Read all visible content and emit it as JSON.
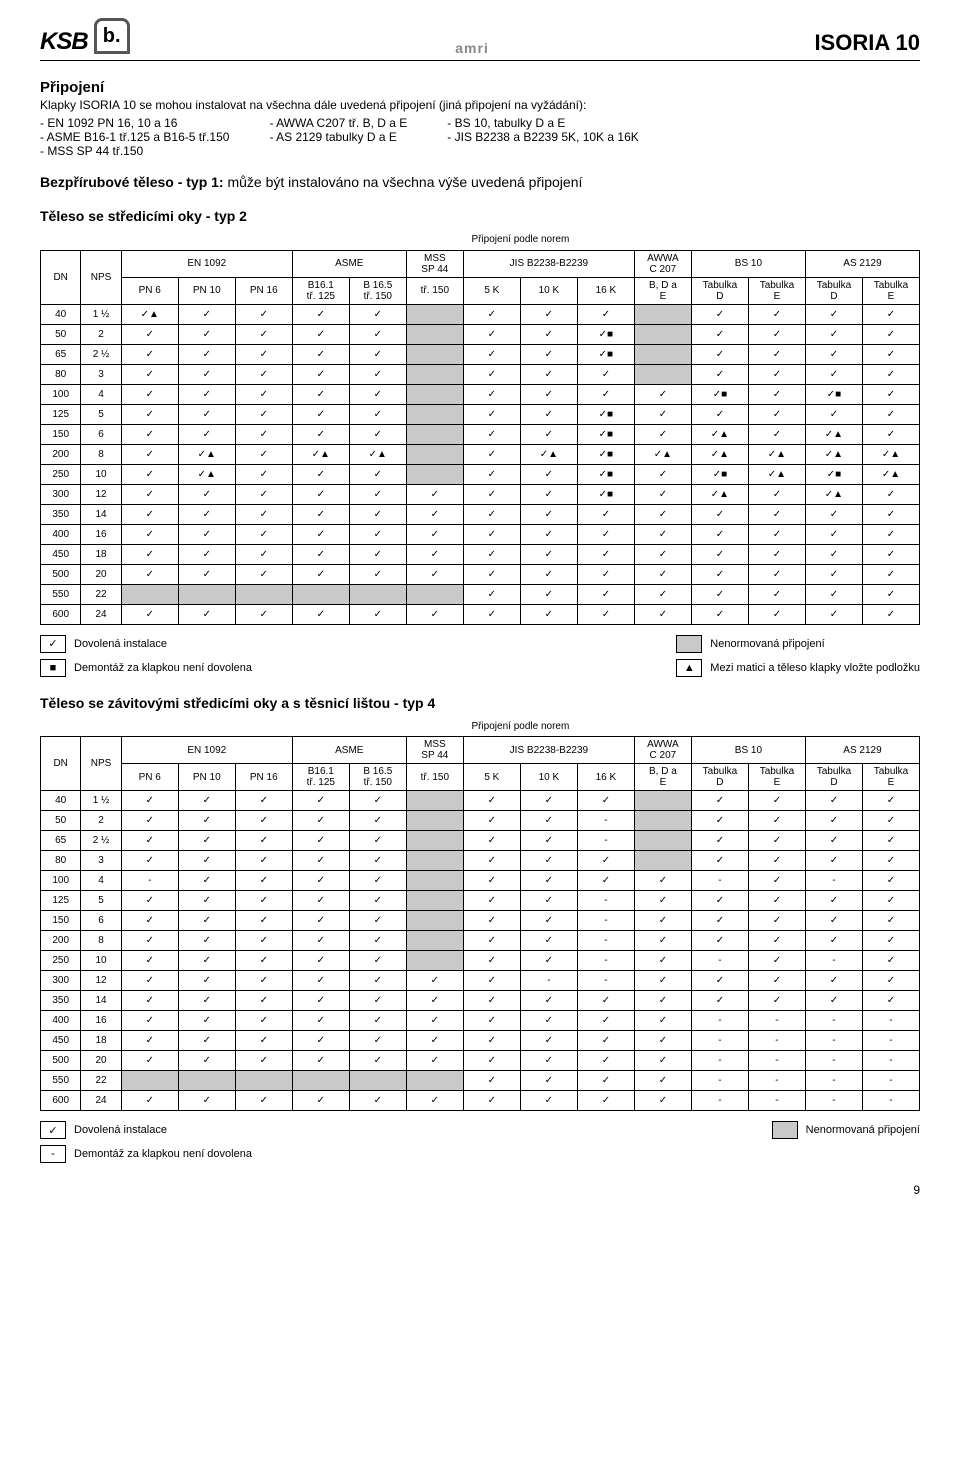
{
  "header": {
    "brand_left": "KSB",
    "brand_mid": "amri",
    "brand_right": "ISORIA 10"
  },
  "section": {
    "title": "Připojení",
    "intro": "Klapky ISORIA 10 se mohou instalovat na všechna dále uvedená připojení (jiná připojení na vyžádání):",
    "col1": [
      "EN 1092 PN 16, 10 a 16",
      "ASME B16-1 tř.125 a B16-5 tř.150",
      "MSS SP 44 tř.150"
    ],
    "col2": [
      "AWWA C207 tř. B, D a E",
      "AS 2129 tabulky D a E"
    ],
    "col3": [
      "BS 10, tabulky D a E",
      "JIS B2238 a B2239 5K, 10K a 16K"
    ],
    "note_bold": "Bezpřírubové těleso - typ 1:",
    "note_rest": " může být instalováno na všechna výše uvedená připojení",
    "typ2_title": "Těleso se středicími oky - typ 2",
    "typ4_title": "Těleso se závitovými středicími oky a s těsnicí lištou - typ 4"
  },
  "table_caption": "Připojení podle norem",
  "headers": {
    "dn": "DN",
    "nps": "NPS",
    "en1092": "EN 1092",
    "asme": "ASME",
    "mss": "MSS\nSP 44",
    "jis": "JIS B2238-B2239",
    "awwa": "AWWA\nC 207",
    "bs10": "BS 10",
    "as2129": "AS 2129",
    "pn6": "PN 6",
    "pn10": "PN 10",
    "pn16": "PN 16",
    "b161": "B16.1\ntř. 125",
    "b165": "B 16.5\ntř. 150",
    "tr150": "tř. 150",
    "k5": "5 K",
    "k10": "10 K",
    "k16": "16 K",
    "bde": "B, D a\nE",
    "tabD": "Tabulka\nD",
    "tabE": "Tabulka\nE"
  },
  "glyph": {
    "check": "✓",
    "triangle_check": "✓▲",
    "square_check": "✓■",
    "dash": "-",
    "triangle": "▲",
    "square": "■"
  },
  "table2_rows": [
    {
      "dn": "40",
      "nps": "1 ½",
      "c": [
        "✓▲",
        "✓",
        "✓",
        "✓",
        "✓",
        "S",
        "✓",
        "✓",
        "✓",
        "S",
        "✓",
        "✓",
        "✓",
        "✓"
      ]
    },
    {
      "dn": "50",
      "nps": "2",
      "c": [
        "✓",
        "✓",
        "✓",
        "✓",
        "✓",
        "S",
        "✓",
        "✓",
        "✓■",
        "S",
        "✓",
        "✓",
        "✓",
        "✓"
      ]
    },
    {
      "dn": "65",
      "nps": "2 ½",
      "c": [
        "✓",
        "✓",
        "✓",
        "✓",
        "✓",
        "S",
        "✓",
        "✓",
        "✓■",
        "S",
        "✓",
        "✓",
        "✓",
        "✓"
      ]
    },
    {
      "dn": "80",
      "nps": "3",
      "c": [
        "✓",
        "✓",
        "✓",
        "✓",
        "✓",
        "S",
        "✓",
        "✓",
        "✓",
        "S",
        "✓",
        "✓",
        "✓",
        "✓"
      ]
    },
    {
      "dn": "100",
      "nps": "4",
      "c": [
        "✓",
        "✓",
        "✓",
        "✓",
        "✓",
        "S",
        "✓",
        "✓",
        "✓",
        "✓",
        "✓■",
        "✓",
        "✓■",
        "✓"
      ]
    },
    {
      "dn": "125",
      "nps": "5",
      "c": [
        "✓",
        "✓",
        "✓",
        "✓",
        "✓",
        "S",
        "✓",
        "✓",
        "✓■",
        "✓",
        "✓",
        "✓",
        "✓",
        "✓"
      ]
    },
    {
      "dn": "150",
      "nps": "6",
      "c": [
        "✓",
        "✓",
        "✓",
        "✓",
        "✓",
        "S",
        "✓",
        "✓",
        "✓■",
        "✓",
        "✓▲",
        "✓",
        "✓▲",
        "✓"
      ]
    },
    {
      "dn": "200",
      "nps": "8",
      "c": [
        "✓",
        "✓▲",
        "✓",
        "✓▲",
        "✓▲",
        "S",
        "✓",
        "✓▲",
        "✓■",
        "✓▲",
        "✓▲",
        "✓▲",
        "✓▲",
        "✓▲"
      ]
    },
    {
      "dn": "250",
      "nps": "10",
      "c": [
        "✓",
        "✓▲",
        "✓",
        "✓",
        "✓",
        "S",
        "✓",
        "✓",
        "✓■",
        "✓",
        "✓■",
        "✓▲",
        "✓■",
        "✓▲"
      ]
    },
    {
      "dn": "300",
      "nps": "12",
      "c": [
        "✓",
        "✓",
        "✓",
        "✓",
        "✓",
        "✓",
        "✓",
        "✓",
        "✓■",
        "✓",
        "✓▲",
        "✓",
        "✓▲",
        "✓"
      ]
    },
    {
      "dn": "350",
      "nps": "14",
      "c": [
        "✓",
        "✓",
        "✓",
        "✓",
        "✓",
        "✓",
        "✓",
        "✓",
        "✓",
        "✓",
        "✓",
        "✓",
        "✓",
        "✓"
      ]
    },
    {
      "dn": "400",
      "nps": "16",
      "c": [
        "✓",
        "✓",
        "✓",
        "✓",
        "✓",
        "✓",
        "✓",
        "✓",
        "✓",
        "✓",
        "✓",
        "✓",
        "✓",
        "✓"
      ]
    },
    {
      "dn": "450",
      "nps": "18",
      "c": [
        "✓",
        "✓",
        "✓",
        "✓",
        "✓",
        "✓",
        "✓",
        "✓",
        "✓",
        "✓",
        "✓",
        "✓",
        "✓",
        "✓"
      ]
    },
    {
      "dn": "500",
      "nps": "20",
      "c": [
        "✓",
        "✓",
        "✓",
        "✓",
        "✓",
        "✓",
        "✓",
        "✓",
        "✓",
        "✓",
        "✓",
        "✓",
        "✓",
        "✓"
      ]
    },
    {
      "dn": "550",
      "nps": "22",
      "c": [
        "S",
        "S",
        "S",
        "S",
        "S",
        "S",
        "✓",
        "✓",
        "✓",
        "✓",
        "✓",
        "✓",
        "✓",
        "✓"
      ]
    },
    {
      "dn": "600",
      "nps": "24",
      "c": [
        "✓",
        "✓",
        "✓",
        "✓",
        "✓",
        "✓",
        "✓",
        "✓",
        "✓",
        "✓",
        "✓",
        "✓",
        "✓",
        "✓"
      ]
    }
  ],
  "table4_rows": [
    {
      "dn": "40",
      "nps": "1 ½",
      "c": [
        "✓",
        "✓",
        "✓",
        "✓",
        "✓",
        "S",
        "✓",
        "✓",
        "✓",
        "S",
        "✓",
        "✓",
        "✓",
        "✓"
      ]
    },
    {
      "dn": "50",
      "nps": "2",
      "c": [
        "✓",
        "✓",
        "✓",
        "✓",
        "✓",
        "S",
        "✓",
        "✓",
        "-",
        "S",
        "✓",
        "✓",
        "✓",
        "✓"
      ]
    },
    {
      "dn": "65",
      "nps": "2 ½",
      "c": [
        "✓",
        "✓",
        "✓",
        "✓",
        "✓",
        "S",
        "✓",
        "✓",
        "-",
        "S",
        "✓",
        "✓",
        "✓",
        "✓"
      ]
    },
    {
      "dn": "80",
      "nps": "3",
      "c": [
        "✓",
        "✓",
        "✓",
        "✓",
        "✓",
        "S",
        "✓",
        "✓",
        "✓",
        "S",
        "✓",
        "✓",
        "✓",
        "✓"
      ]
    },
    {
      "dn": "100",
      "nps": "4",
      "c": [
        "-",
        "✓",
        "✓",
        "✓",
        "✓",
        "S",
        "✓",
        "✓",
        "✓",
        "✓",
        "-",
        "✓",
        "-",
        "✓"
      ]
    },
    {
      "dn": "125",
      "nps": "5",
      "c": [
        "✓",
        "✓",
        "✓",
        "✓",
        "✓",
        "S",
        "✓",
        "✓",
        "-",
        "✓",
        "✓",
        "✓",
        "✓",
        "✓"
      ]
    },
    {
      "dn": "150",
      "nps": "6",
      "c": [
        "✓",
        "✓",
        "✓",
        "✓",
        "✓",
        "S",
        "✓",
        "✓",
        "-",
        "✓",
        "✓",
        "✓",
        "✓",
        "✓"
      ]
    },
    {
      "dn": "200",
      "nps": "8",
      "c": [
        "✓",
        "✓",
        "✓",
        "✓",
        "✓",
        "S",
        "✓",
        "✓",
        "-",
        "✓",
        "✓",
        "✓",
        "✓",
        "✓"
      ]
    },
    {
      "dn": "250",
      "nps": "10",
      "c": [
        "✓",
        "✓",
        "✓",
        "✓",
        "✓",
        "S",
        "✓",
        "✓",
        "-",
        "✓",
        "-",
        "✓",
        "-",
        "✓"
      ]
    },
    {
      "dn": "300",
      "nps": "12",
      "c": [
        "✓",
        "✓",
        "✓",
        "✓",
        "✓",
        "✓",
        "✓",
        "-",
        "-",
        "✓",
        "✓",
        "✓",
        "✓",
        "✓"
      ]
    },
    {
      "dn": "350",
      "nps": "14",
      "c": [
        "✓",
        "✓",
        "✓",
        "✓",
        "✓",
        "✓",
        "✓",
        "✓",
        "✓",
        "✓",
        "✓",
        "✓",
        "✓",
        "✓"
      ]
    },
    {
      "dn": "400",
      "nps": "16",
      "c": [
        "✓",
        "✓",
        "✓",
        "✓",
        "✓",
        "✓",
        "✓",
        "✓",
        "✓",
        "✓",
        "-",
        "-",
        "-",
        "-"
      ]
    },
    {
      "dn": "450",
      "nps": "18",
      "c": [
        "✓",
        "✓",
        "✓",
        "✓",
        "✓",
        "✓",
        "✓",
        "✓",
        "✓",
        "✓",
        "-",
        "-",
        "-",
        "-"
      ]
    },
    {
      "dn": "500",
      "nps": "20",
      "c": [
        "✓",
        "✓",
        "✓",
        "✓",
        "✓",
        "✓",
        "✓",
        "✓",
        "✓",
        "✓",
        "-",
        "-",
        "-",
        "-"
      ]
    },
    {
      "dn": "550",
      "nps": "22",
      "c": [
        "S",
        "S",
        "S",
        "S",
        "S",
        "S",
        "✓",
        "✓",
        "✓",
        "✓",
        "-",
        "-",
        "-",
        "-"
      ]
    },
    {
      "dn": "600",
      "nps": "24",
      "c": [
        "✓",
        "✓",
        "✓",
        "✓",
        "✓",
        "✓",
        "✓",
        "✓",
        "✓",
        "✓",
        "-",
        "-",
        "-",
        "-"
      ]
    }
  ],
  "legend2": {
    "l1": "Dovolená instalace",
    "l2": "Demontáž za klapkou není dovolena",
    "r1": "Nenormovaná připojení",
    "r2": "Mezi matici a těleso klapky vložte podložku"
  },
  "legend4": {
    "l1": "Dovolená instalace",
    "l2": "Demontáž za klapkou není dovolena",
    "r1": "Nenormovaná připojení"
  },
  "page_number": "9"
}
